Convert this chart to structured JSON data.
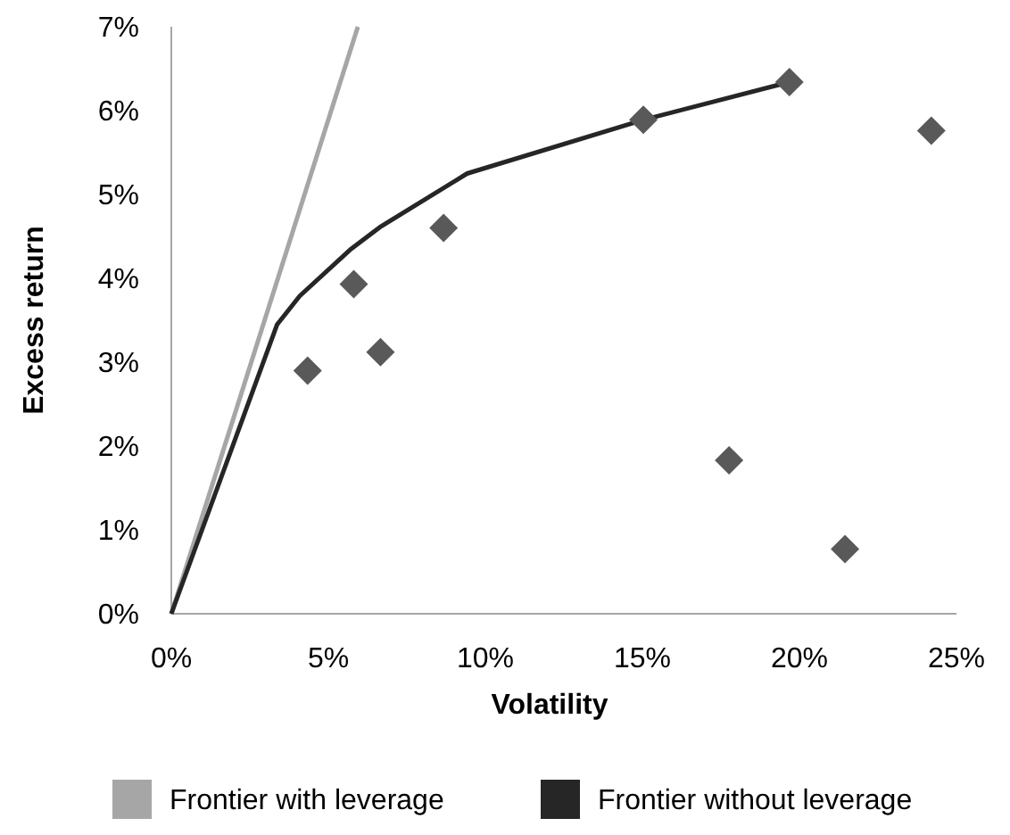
{
  "chart_data": {
    "type": "scatter",
    "xlabel": "Volatility",
    "ylabel": "Excess return",
    "xlim": [
      0,
      25
    ],
    "ylim": [
      0,
      7
    ],
    "xticks": [
      {
        "value": 0,
        "label": "0%"
      },
      {
        "value": 5,
        "label": "5%"
      },
      {
        "value": 10,
        "label": "10%"
      },
      {
        "value": 15,
        "label": "15%"
      },
      {
        "value": 20,
        "label": "20%"
      },
      {
        "value": 25,
        "label": "25%"
      }
    ],
    "yticks": [
      {
        "value": 0,
        "label": "0%"
      },
      {
        "value": 1,
        "label": "1%"
      },
      {
        "value": 2,
        "label": "2%"
      },
      {
        "value": 3,
        "label": "3%"
      },
      {
        "value": 4,
        "label": "4%"
      },
      {
        "value": 5,
        "label": "5%"
      },
      {
        "value": 6,
        "label": "6%"
      },
      {
        "value": 7,
        "label": "7%"
      }
    ],
    "grid": false,
    "legend": "bottom",
    "series": [
      {
        "name": "Frontier with leverage",
        "type": "line",
        "color": "#a6a6a6",
        "marker": "none",
        "line_style": "solid",
        "x": [
          0,
          5.94
        ],
        "values": [
          0,
          7.0
        ]
      },
      {
        "name": "Frontier without leverage",
        "type": "line",
        "color": "#262626",
        "marker": "none",
        "line_style": "solid",
        "x": [
          0,
          3.37,
          4.09,
          5.69,
          6.64,
          9.42,
          15.03,
          19.68
        ],
        "values": [
          0,
          3.45,
          3.79,
          4.34,
          4.61,
          5.25,
          5.89,
          6.34
        ]
      },
      {
        "color": "#595959",
        "marker": "diamond",
        "x": [
          4.34,
          5.81,
          6.66,
          8.67,
          15.03,
          19.68,
          24.2,
          17.76,
          21.45
        ],
        "values": [
          2.9,
          3.93,
          3.12,
          4.6,
          5.89,
          6.34,
          5.76,
          1.83,
          0.77
        ]
      }
    ]
  }
}
